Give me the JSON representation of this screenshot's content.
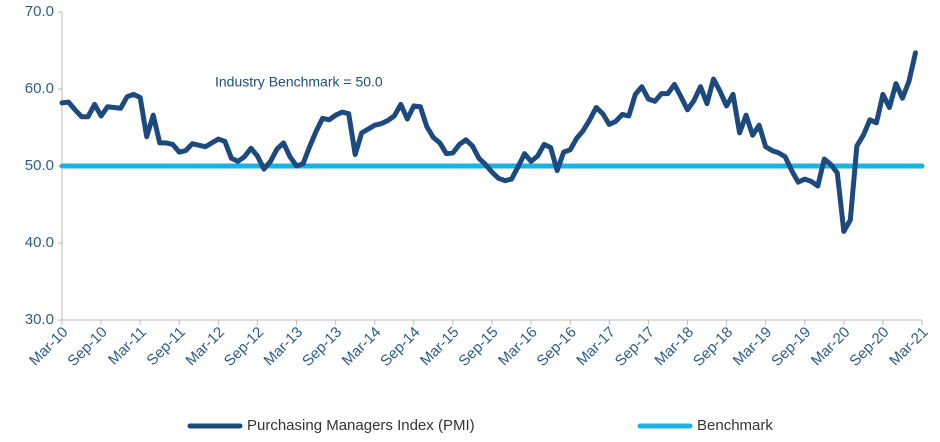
{
  "chart_data": {
    "type": "line",
    "annotation": "Industry Benchmark = 50.0",
    "categories": [
      "Mar-10",
      null,
      null,
      null,
      null,
      null,
      "Sep-10",
      null,
      null,
      null,
      null,
      null,
      "Mar-11",
      null,
      null,
      null,
      null,
      null,
      "Sep-11",
      null,
      null,
      null,
      null,
      null,
      "Mar-12",
      null,
      null,
      null,
      null,
      null,
      "Sep-12",
      null,
      null,
      null,
      null,
      null,
      "Mar-13",
      null,
      null,
      null,
      null,
      null,
      "Sep-13",
      null,
      null,
      null,
      null,
      null,
      "Mar-14",
      null,
      null,
      null,
      null,
      null,
      "Sep-14",
      null,
      null,
      null,
      null,
      null,
      "Mar-15",
      null,
      null,
      null,
      null,
      null,
      "Sep-15",
      null,
      null,
      null,
      null,
      null,
      "Mar-16",
      null,
      null,
      null,
      null,
      null,
      "Sep-16",
      null,
      null,
      null,
      null,
      null,
      "Mar-17",
      null,
      null,
      null,
      null,
      null,
      "Sep-17",
      null,
      null,
      null,
      null,
      null,
      "Mar-18",
      null,
      null,
      null,
      null,
      null,
      "Sep-18",
      null,
      null,
      null,
      null,
      null,
      "Mar-19",
      null,
      null,
      null,
      null,
      null,
      "Sep-19",
      null,
      null,
      null,
      null,
      null,
      "Mar-20",
      null,
      null,
      null,
      null,
      null,
      "Sep-20",
      null,
      null,
      null,
      null,
      null,
      "Mar-21"
    ],
    "series": [
      {
        "name": "Purchasing Managers Index (PMI)",
        "color": "#1c4a7e",
        "width": 5,
        "values": [
          58.2,
          58.3,
          57.3,
          56.4,
          56.4,
          58.0,
          56.5,
          57.7,
          57.6,
          57.5,
          59.0,
          59.3,
          58.9,
          53.8,
          56.6,
          53.0,
          53.0,
          52.8,
          51.8,
          52.0,
          52.9,
          52.7,
          52.5,
          53.0,
          53.5,
          53.2,
          51.0,
          50.6,
          51.2,
          52.3,
          51.3,
          49.6,
          50.6,
          52.2,
          53.0,
          51.2,
          50.0,
          50.3,
          52.5,
          54.5,
          56.2,
          56.0,
          56.6,
          57.0,
          56.8,
          51.5,
          54.3,
          54.8,
          55.3,
          55.5,
          55.9,
          56.5,
          58.0,
          56.1,
          57.8,
          57.7,
          55.1,
          53.7,
          53.0,
          51.6,
          51.7,
          52.8,
          53.4,
          52.6,
          51.0,
          50.2,
          49.2,
          48.4,
          48.1,
          48.3,
          49.9,
          51.6,
          50.6,
          51.3,
          52.8,
          52.4,
          49.4,
          51.8,
          52.1,
          53.6,
          54.6,
          56.0,
          57.6,
          56.8,
          55.4,
          55.8,
          56.7,
          56.5,
          59.3,
          60.3,
          58.7,
          58.4,
          59.4,
          59.4,
          60.6,
          59.0,
          57.3,
          58.5,
          60.3,
          58.1,
          61.3,
          59.7,
          57.8,
          59.3,
          54.3,
          56.6,
          54.0,
          55.3,
          52.5,
          52.0,
          51.7,
          51.2,
          49.4,
          47.9,
          48.3,
          48.0,
          47.4,
          50.9,
          50.2,
          49.1,
          41.5,
          43.0,
          52.6,
          54.0,
          56.0,
          55.6,
          59.3,
          57.6,
          60.7,
          58.8,
          61.0,
          64.7,
          null
        ]
      },
      {
        "name": "Benchmark",
        "color": "#1bb3e6",
        "width": 5,
        "values": [
          50,
          50,
          50,
          50,
          50,
          50,
          50,
          50,
          50,
          50,
          50,
          50,
          50,
          50,
          50,
          50,
          50,
          50,
          50,
          50,
          50,
          50,
          50,
          50,
          50,
          50,
          50,
          50,
          50,
          50,
          50,
          50,
          50,
          50,
          50,
          50,
          50,
          50,
          50,
          50,
          50,
          50,
          50,
          50,
          50,
          50,
          50,
          50,
          50,
          50,
          50,
          50,
          50,
          50,
          50,
          50,
          50,
          50,
          50,
          50,
          50,
          50,
          50,
          50,
          50,
          50,
          50,
          50,
          50,
          50,
          50,
          50,
          50,
          50,
          50,
          50,
          50,
          50,
          50,
          50,
          50,
          50,
          50,
          50,
          50,
          50,
          50,
          50,
          50,
          50,
          50,
          50,
          50,
          50,
          50,
          50,
          50,
          50,
          50,
          50,
          50,
          50,
          50,
          50,
          50,
          50,
          50,
          50,
          50,
          50,
          50,
          50,
          50,
          50,
          50,
          50,
          50,
          50,
          50,
          50,
          50,
          50,
          50,
          50,
          50,
          50,
          50,
          50,
          50,
          50,
          50,
          50,
          50
        ]
      }
    ],
    "ylim": [
      30,
      70
    ],
    "yticks": [
      {
        "value": 30,
        "label": "30.0"
      },
      {
        "value": 40,
        "label": "40.0"
      },
      {
        "value": 50,
        "label": "50.0"
      },
      {
        "value": 60,
        "label": "60.0"
      },
      {
        "value": 70,
        "label": "70.0"
      }
    ],
    "grid": false
  }
}
